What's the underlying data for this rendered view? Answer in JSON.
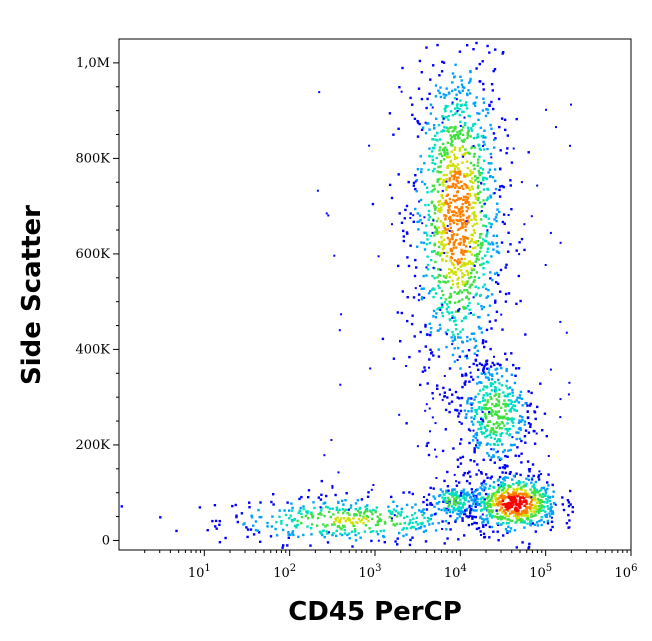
{
  "chart_data": {
    "type": "scatter",
    "title": "",
    "xlabel": "CD45 PerCP",
    "ylabel": "Side Scatter",
    "x_scale": "log",
    "xlim": [
      1,
      1000000
    ],
    "ylim": [
      -20000,
      1050000
    ],
    "x_ticks": [
      {
        "value": 10,
        "base": "10",
        "exp": "1"
      },
      {
        "value": 100,
        "base": "10",
        "exp": "2"
      },
      {
        "value": 1000,
        "base": "10",
        "exp": "3"
      },
      {
        "value": 10000,
        "base": "10",
        "exp": "4"
      },
      {
        "value": 100000,
        "base": "10",
        "exp": "5"
      },
      {
        "value": 1000000,
        "base": "10",
        "exp": "6"
      }
    ],
    "y_ticks": [
      {
        "value": 0,
        "label": "0"
      },
      {
        "value": 200000,
        "label": "200K"
      },
      {
        "value": 400000,
        "label": "400K"
      },
      {
        "value": 600000,
        "label": "600K"
      },
      {
        "value": 800000,
        "label": "800K"
      },
      {
        "value": 1000000,
        "label": "1,0M"
      }
    ],
    "grid": false,
    "density_colormap": [
      "#0000ff",
      "#00a0ff",
      "#00e0c0",
      "#40e040",
      "#d0e000",
      "#ff8000",
      "#ff0000"
    ],
    "populations": [
      {
        "x_center": 500,
        "x_spread": 0.35,
        "y_center": 45000,
        "y_spread": 25000,
        "peak_density": 0.6
      },
      {
        "x_center": 9000,
        "x_spread": 0.12,
        "y_center": 680000,
        "y_spread": 170000,
        "peak_density": 0.85
      },
      {
        "x_center": 25000,
        "x_spread": 0.1,
        "y_center": 270000,
        "y_spread": 60000,
        "peak_density": 0.55
      },
      {
        "x_center": 8000,
        "x_spread": 0.07,
        "y_center": 85000,
        "y_spread": 20000,
        "peak_density": 0.5
      },
      {
        "x_center": 42000,
        "x_spread": 0.12,
        "y_center": 80000,
        "y_spread": 30000,
        "peak_density": 1.0
      }
    ]
  }
}
